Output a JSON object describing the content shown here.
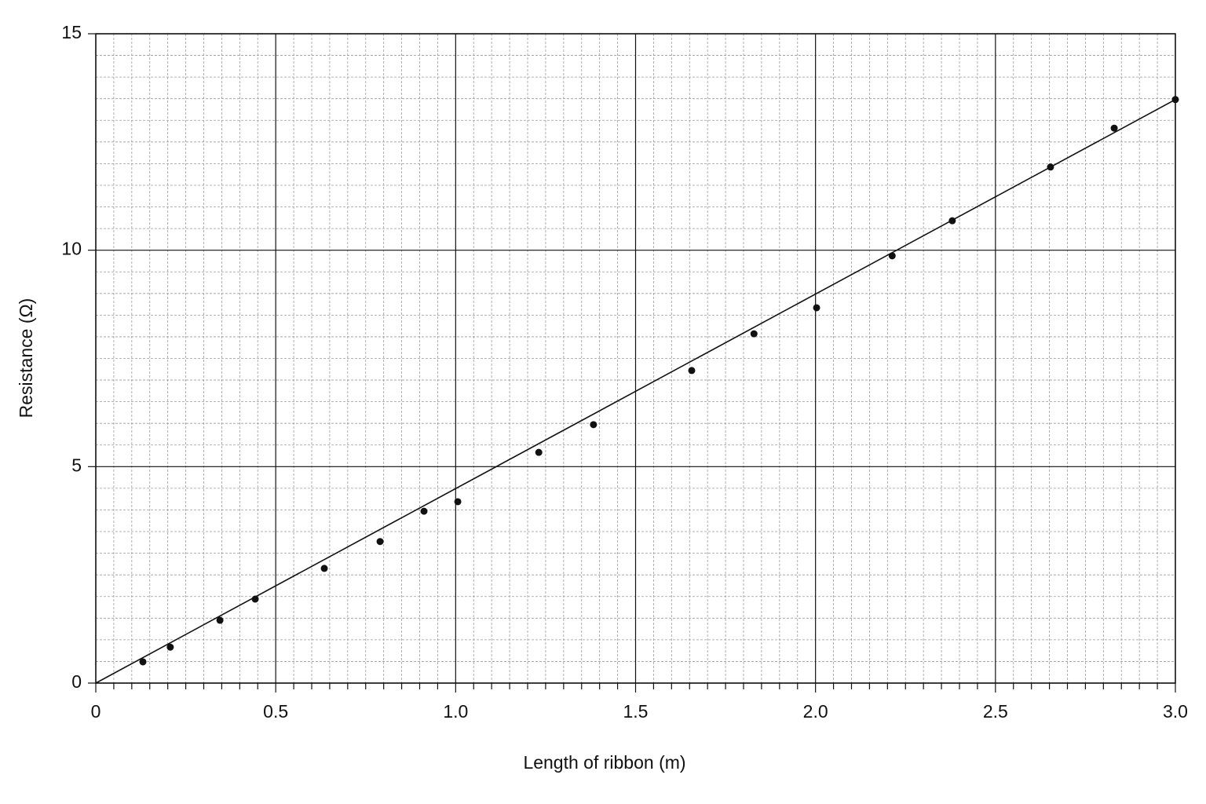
{
  "chart_data": {
    "type": "scatter",
    "x_label": "Length of ribbon (m)",
    "y_label": "Resistance (Ω)",
    "x": [
      0.131,
      0.207,
      0.345,
      0.443,
      0.635,
      0.79,
      0.912,
      1.006,
      1.231,
      1.383,
      1.656,
      1.829,
      2.003,
      2.213,
      2.38,
      2.653,
      2.83,
      3.0
    ],
    "values": [
      0.49,
      0.83,
      1.45,
      1.94,
      2.65,
      3.27,
      3.97,
      4.19,
      5.33,
      5.97,
      7.22,
      8.07,
      8.67,
      9.87,
      10.68,
      11.92,
      12.82,
      13.48
    ],
    "color": "#111111",
    "fit_line": {
      "x": [
        0,
        3.0
      ],
      "y": [
        0,
        13.48
      ]
    },
    "xlim": [
      0,
      3.0
    ],
    "ylim": [
      0,
      15
    ],
    "xticks": [
      0,
      0.5,
      {
        "value": 1,
        "label": "1.0"
      },
      1.5,
      {
        "value": 2,
        "label": "2.0"
      },
      2.5,
      {
        "value": 3,
        "label": "3.0"
      }
    ],
    "yticks": [
      0,
      5,
      10,
      15
    ],
    "grid": true
  }
}
